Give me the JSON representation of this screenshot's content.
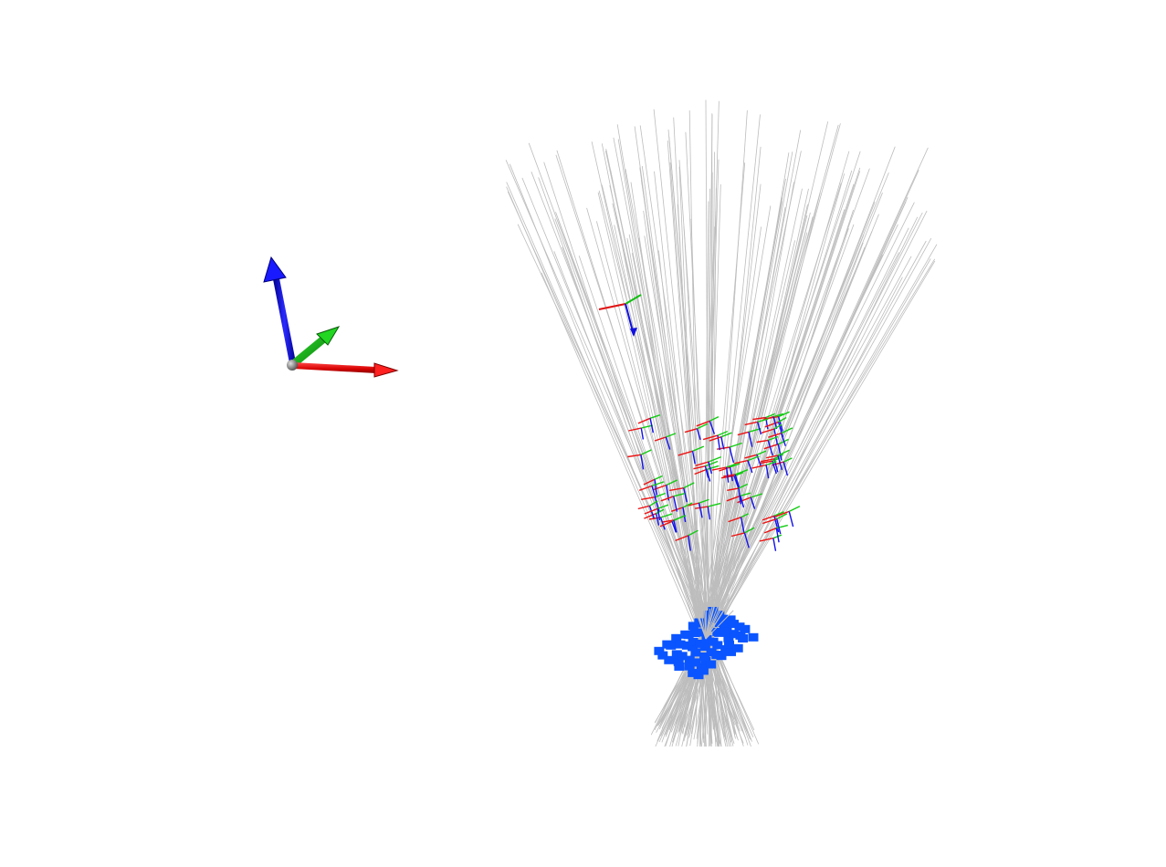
{
  "scene": {
    "background": "#ffffff",
    "world_axes": {
      "x_color": "#ff1a1a",
      "y_color": "#14b814",
      "z_color": "#1010ff",
      "origin_color": "#9a9a9a",
      "icon": "xyz-axes-icon"
    },
    "camera_frame": {
      "x_color": "#e01010",
      "y_color": "#10c010",
      "z_color": "#1010e0",
      "icon": "camera-frame-icon"
    },
    "ray_color": "#bdbdbd",
    "pose_colors": {
      "x": "#ee1111",
      "y": "#11cc11",
      "z": "#1111ee"
    },
    "marker_color": "#0a55ff",
    "ray_count": 150,
    "pose_count": 60,
    "marker_count": 70
  }
}
